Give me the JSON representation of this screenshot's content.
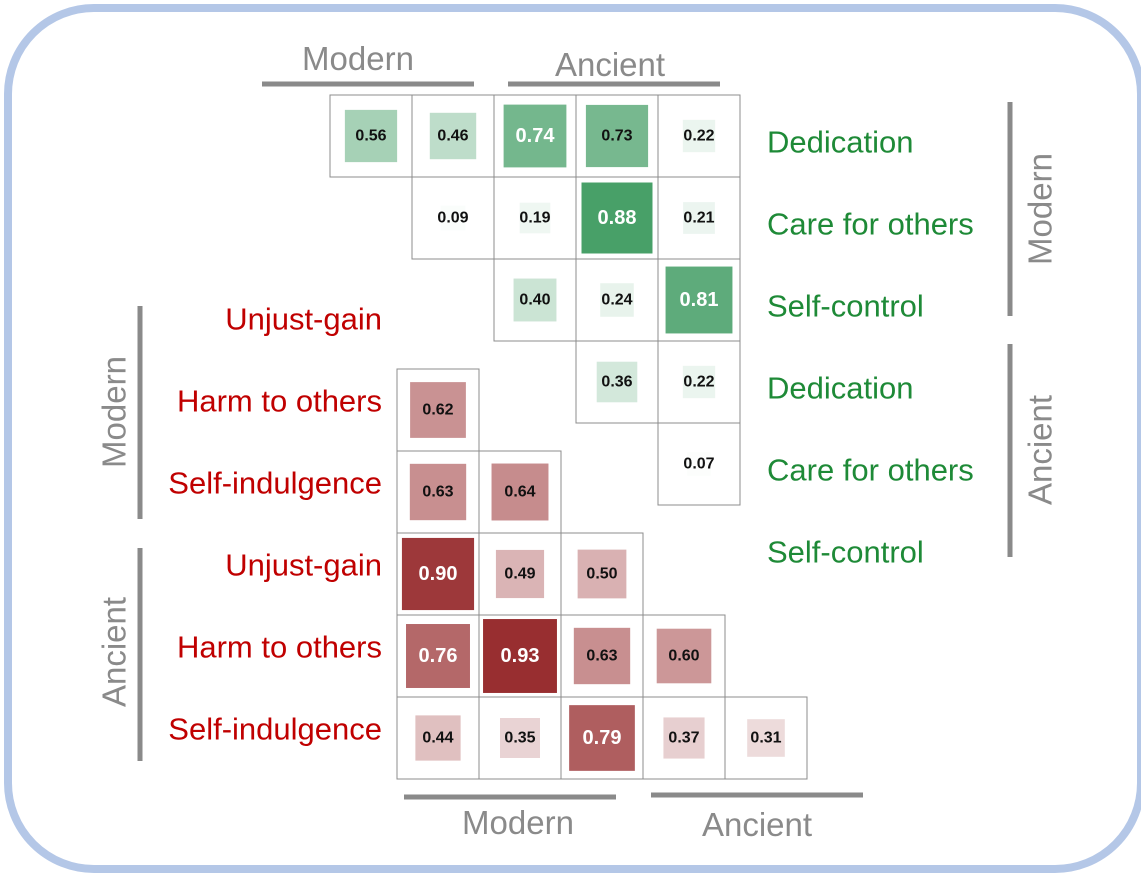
{
  "chart_data": [
    {
      "type": "heatmap",
      "name": "virtues",
      "color": "#1e8a46",
      "rows": [
        "Dedication",
        "Care for others",
        "Self-control",
        "Dedication",
        "Care for others",
        "Self-control"
      ],
      "row_groups": [
        "Modern",
        "Ancient"
      ],
      "col_groups": [
        "Modern",
        "Ancient"
      ],
      "cells": [
        {
          "row": 0,
          "col": 0,
          "value": 0.56
        },
        {
          "row": 0,
          "col": 1,
          "value": 0.46
        },
        {
          "row": 0,
          "col": 2,
          "value": 0.74
        },
        {
          "row": 0,
          "col": 3,
          "value": 0.73
        },
        {
          "row": 0,
          "col": 4,
          "value": 0.22
        },
        {
          "row": 1,
          "col": 1,
          "value": 0.09
        },
        {
          "row": 1,
          "col": 2,
          "value": 0.19
        },
        {
          "row": 1,
          "col": 3,
          "value": 0.88
        },
        {
          "row": 1,
          "col": 4,
          "value": 0.21
        },
        {
          "row": 2,
          "col": 2,
          "value": 0.4
        },
        {
          "row": 2,
          "col": 3,
          "value": 0.24
        },
        {
          "row": 2,
          "col": 4,
          "value": 0.81
        },
        {
          "row": 3,
          "col": 3,
          "value": 0.36
        },
        {
          "row": 3,
          "col": 4,
          "value": 0.22
        },
        {
          "row": 4,
          "col": 4,
          "value": 0.07
        }
      ]
    },
    {
      "type": "heatmap",
      "name": "vices",
      "color": "#8b1416",
      "rows": [
        "Unjust-gain",
        "Harm to others",
        "Self-indulgence",
        "Unjust-gain",
        "Harm to others",
        "Self-indulgence"
      ],
      "row_groups": [
        "Modern",
        "Ancient"
      ],
      "col_groups": [
        "Modern",
        "Ancient"
      ],
      "cells": [
        {
          "row": 1,
          "col": 0,
          "value": 0.62
        },
        {
          "row": 2,
          "col": 0,
          "value": 0.63
        },
        {
          "row": 2,
          "col": 1,
          "value": 0.64
        },
        {
          "row": 3,
          "col": 0,
          "value": 0.9
        },
        {
          "row": 3,
          "col": 1,
          "value": 0.49
        },
        {
          "row": 3,
          "col": 2,
          "value": 0.5
        },
        {
          "row": 4,
          "col": 0,
          "value": 0.76
        },
        {
          "row": 4,
          "col": 1,
          "value": 0.93
        },
        {
          "row": 4,
          "col": 2,
          "value": 0.63
        },
        {
          "row": 4,
          "col": 3,
          "value": 0.6
        },
        {
          "row": 5,
          "col": 0,
          "value": 0.44
        },
        {
          "row": 5,
          "col": 1,
          "value": 0.35
        },
        {
          "row": 5,
          "col": 2,
          "value": 0.79
        },
        {
          "row": 5,
          "col": 3,
          "value": 0.37
        },
        {
          "row": 5,
          "col": 4,
          "value": 0.31
        }
      ]
    }
  ]
}
